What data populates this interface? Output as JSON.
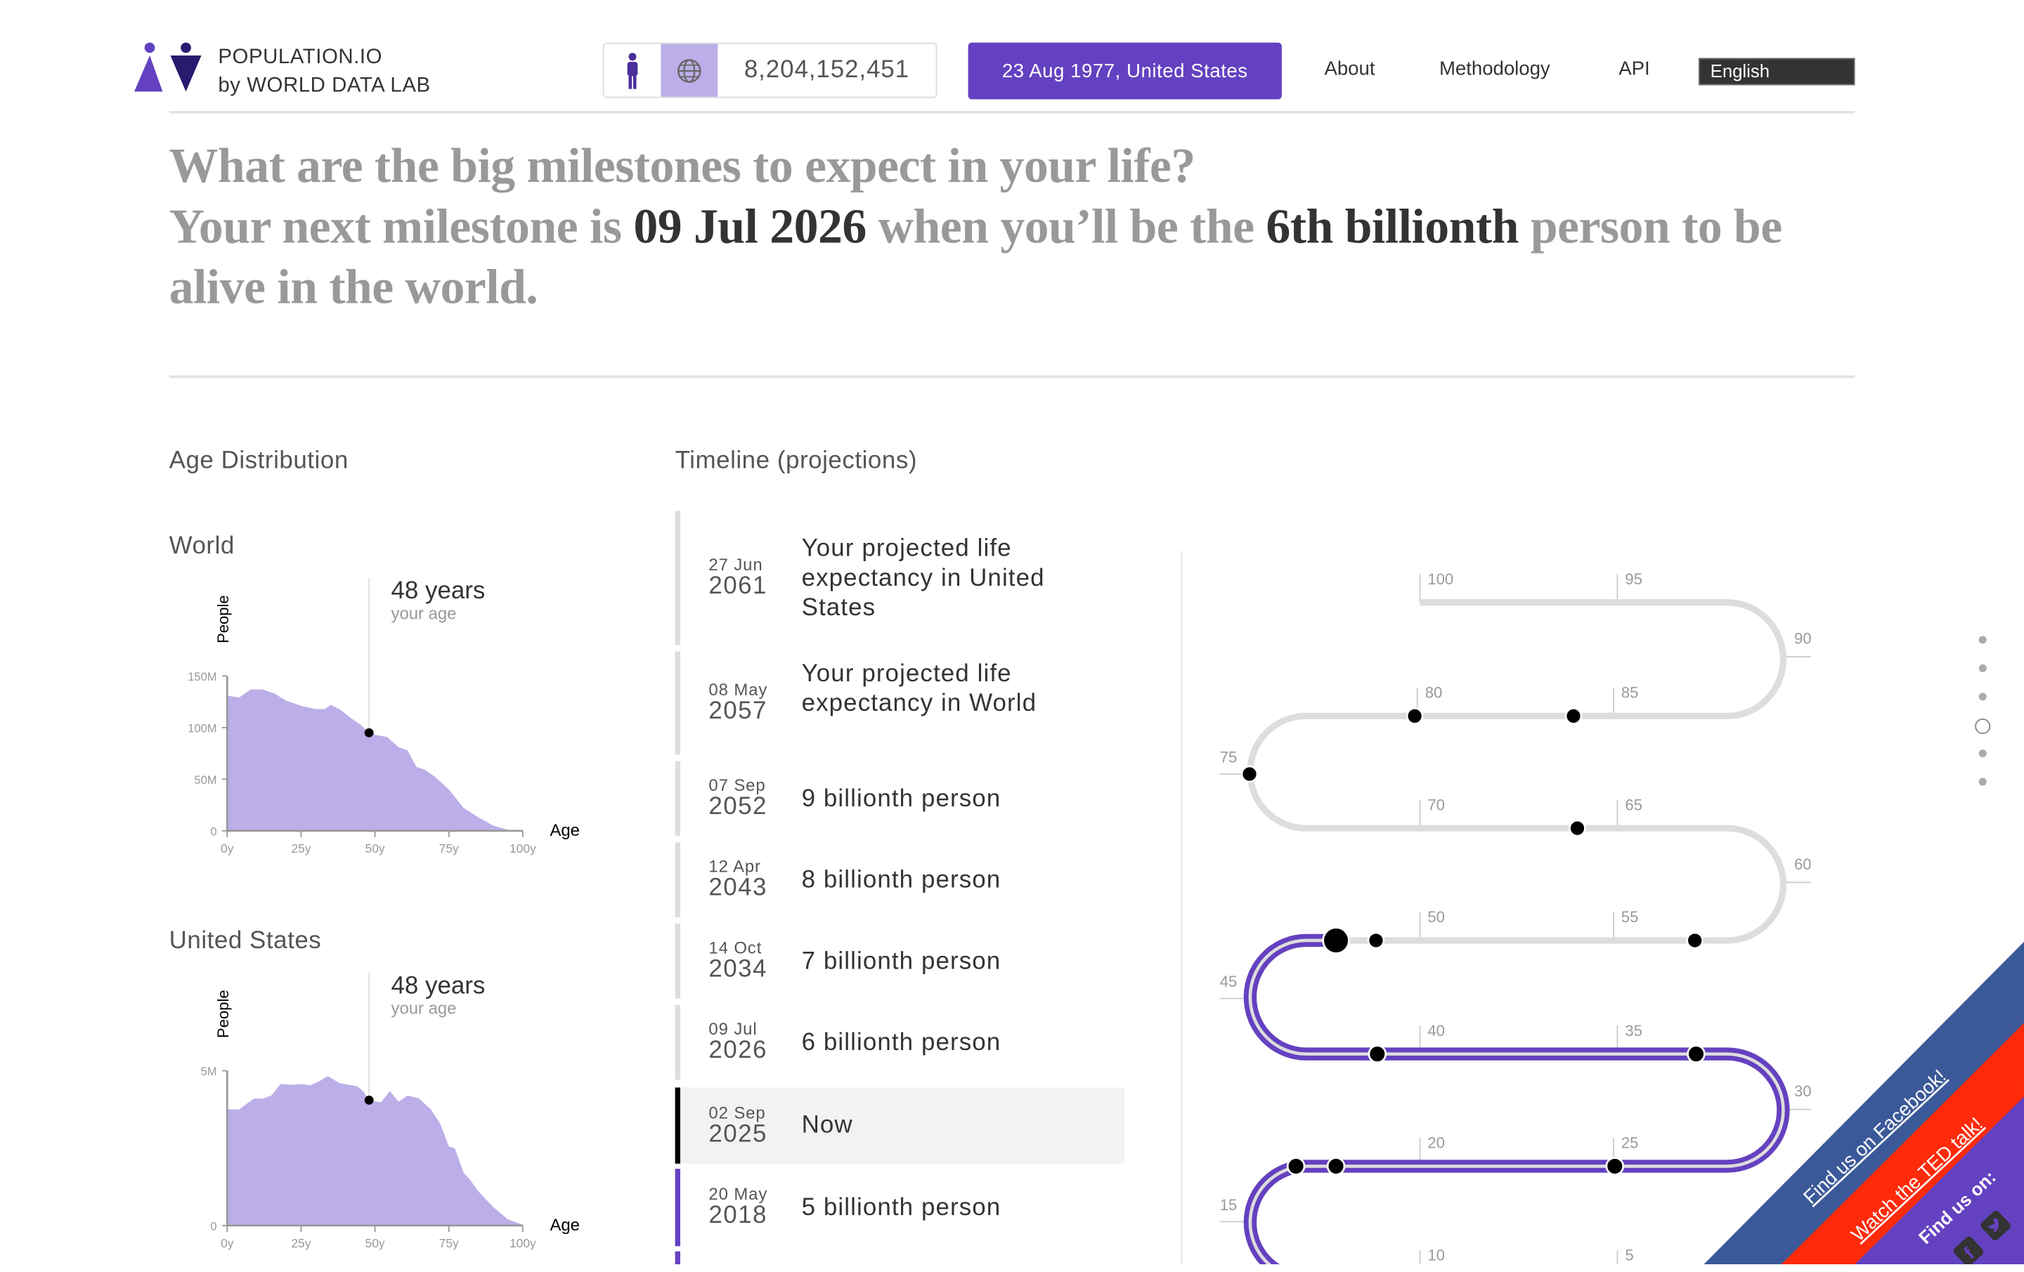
{
  "header": {
    "brand_line1": "POPULATION.IO",
    "brand_line2": "by WORLD DATA LAB",
    "population_counter": "8,204,152,451",
    "user_button": "23 Aug 1977, United States",
    "nav": [
      "About",
      "Methodology",
      "API"
    ],
    "language": "English",
    "icons": [
      "person-icon",
      "globe-icon"
    ]
  },
  "headline": {
    "line1": "What are the big milestones to expect in your life?",
    "prefix": "Your next milestone is ",
    "date": "09 Jul 2026",
    "middle": " when you’ll be the ",
    "milestone": "6th billionth",
    "suffix": " person to be alive in the world."
  },
  "age_distribution": {
    "title": "Age Distribution",
    "world_title": "World",
    "us_title": "United States"
  },
  "chart_data": [
    {
      "type": "area",
      "title": "World",
      "xlabel": "Age",
      "ylabel": "People",
      "xlim": [
        0,
        100
      ],
      "ylim": [
        0,
        150000000
      ],
      "x_ticks": [
        "0y",
        "25y",
        "50y",
        "75y",
        "100y"
      ],
      "y_ticks": [
        "0",
        "50M",
        "100M",
        "150M"
      ],
      "x": [
        0,
        4,
        8,
        12,
        16,
        20,
        25,
        30,
        33,
        35,
        38,
        42,
        45,
        48,
        50,
        54,
        58,
        61,
        64,
        67,
        70,
        75,
        80,
        85,
        90,
        95,
        100
      ],
      "values_millions": [
        131,
        129,
        137,
        137,
        133,
        126,
        121,
        118,
        118,
        122,
        118,
        109,
        103,
        95,
        93,
        91,
        81,
        78,
        62,
        59,
        53,
        40,
        22,
        13,
        5,
        1,
        0
      ],
      "marker": {
        "age": 48,
        "value_millions": 95,
        "label": "48 years",
        "sublabel": "your age"
      },
      "color": "#bcaee8"
    },
    {
      "type": "area",
      "title": "United States",
      "xlabel": "Age",
      "ylabel": "People",
      "xlim": [
        0,
        100
      ],
      "ylim": [
        0,
        5000000
      ],
      "x_ticks": [
        "0y",
        "25y",
        "50y",
        "75y",
        "100y"
      ],
      "y_ticks": [
        "0",
        "5M"
      ],
      "x": [
        0,
        4,
        9,
        12,
        15,
        18,
        22,
        25,
        28,
        31,
        34,
        38,
        44,
        46,
        48,
        52,
        55,
        58,
        61,
        65,
        69,
        72,
        75,
        77,
        80,
        82,
        85,
        90,
        95,
        100
      ],
      "values_millions": [
        3.76,
        3.75,
        4.1,
        4.1,
        4.2,
        4.57,
        4.55,
        4.57,
        4.53,
        4.65,
        4.83,
        4.6,
        4.5,
        4.34,
        4.05,
        3.98,
        4.34,
        4.0,
        4.2,
        4.1,
        3.74,
        3.3,
        2.55,
        2.5,
        1.7,
        1.5,
        1.1,
        0.6,
        0.2,
        0.03
      ],
      "marker": {
        "age": 48,
        "value_millions": 4.05,
        "label": "48 years",
        "sublabel": "your age"
      },
      "color": "#bcaee8"
    }
  ],
  "timeline": {
    "title": "Timeline (projections)",
    "items": [
      {
        "day": "27 Jun",
        "year": "2061",
        "label": "Your projected life expectancy in United States",
        "state": "future"
      },
      {
        "day": "08 May",
        "year": "2057",
        "label": "Your projected life expectancy in World",
        "state": "future"
      },
      {
        "day": "07 Sep",
        "year": "2052",
        "label": "9 billionth person",
        "state": "future"
      },
      {
        "day": "12 Apr",
        "year": "2043",
        "label": "8 billionth person",
        "state": "future"
      },
      {
        "day": "14 Oct",
        "year": "2034",
        "label": "7 billionth person",
        "state": "future"
      },
      {
        "day": "09 Jul",
        "year": "2026",
        "label": "6 billionth person",
        "state": "future"
      },
      {
        "day": "02 Sep",
        "year": "2025",
        "label": "Now",
        "state": "now"
      },
      {
        "day": "20 May",
        "year": "2018",
        "label": "5 billionth person",
        "state": "past"
      }
    ],
    "age_labels": [
      "100",
      "95",
      "90",
      "85",
      "80",
      "75",
      "70",
      "65",
      "60",
      "55",
      "50",
      "45",
      "40",
      "35",
      "30",
      "25",
      "20",
      "15",
      "10",
      "5"
    ],
    "current_age": 48,
    "colors": {
      "past": "#6441c0",
      "future": "#dddddd",
      "now": "#000000"
    }
  },
  "banner": {
    "facebook": "Find us on Facebook!",
    "ted": "Watch the TED talk!",
    "social": "Find us on:",
    "colors": {
      "facebook": "#3b5998",
      "ted": "#ff2a0a",
      "social": "#6441c0"
    }
  },
  "pagination": {
    "count": 6,
    "active": 4
  }
}
